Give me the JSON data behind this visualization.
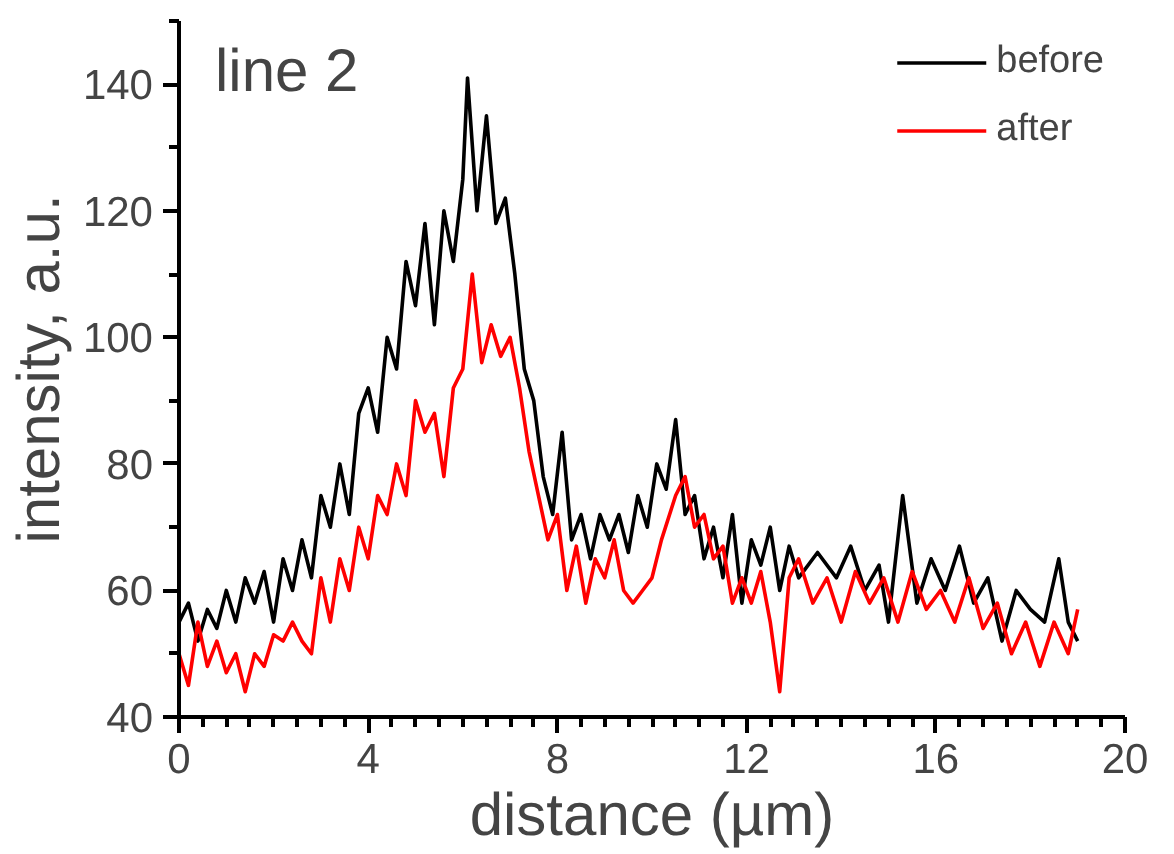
{
  "chart_data": {
    "type": "line",
    "title": "line 2",
    "xlabel": "distance (µm)",
    "ylabel": "intensity, a.u.",
    "xlim": [
      0,
      20
    ],
    "ylim": [
      40,
      150
    ],
    "xticks": [
      0,
      4,
      8,
      12,
      16,
      20
    ],
    "yticks": [
      40,
      60,
      80,
      100,
      120,
      140
    ],
    "grid": false,
    "legend": "top right",
    "marker": "none",
    "line_style": "solid",
    "series": [
      {
        "name": "before",
        "color": "#000000",
        "x": [
          0,
          0.2,
          0.4,
          0.6,
          0.8,
          1.0,
          1.2,
          1.4,
          1.6,
          1.8,
          2.0,
          2.2,
          2.4,
          2.6,
          2.8,
          3.0,
          3.2,
          3.4,
          3.6,
          3.8,
          4.0,
          4.2,
          4.4,
          4.6,
          4.8,
          5.0,
          5.2,
          5.4,
          5.6,
          5.8,
          6.0,
          6.1,
          6.3,
          6.5,
          6.7,
          6.9,
          7.1,
          7.3,
          7.5,
          7.7,
          7.9,
          8.1,
          8.3,
          8.5,
          8.7,
          8.9,
          9.1,
          9.3,
          9.5,
          9.7,
          9.9,
          10.1,
          10.3,
          10.5,
          10.7,
          10.9,
          11.1,
          11.3,
          11.5,
          11.7,
          11.9,
          12.1,
          12.3,
          12.5,
          12.7,
          12.9,
          13.1,
          13.5,
          13.9,
          14.2,
          14.5,
          14.8,
          15.0,
          15.3,
          15.6,
          15.9,
          16.2,
          16.5,
          16.8,
          17.1,
          17.4,
          17.7,
          18.0,
          18.3,
          18.6,
          18.8,
          19.0
        ],
        "values": [
          55,
          58,
          52,
          57,
          54,
          60,
          55,
          62,
          58,
          63,
          55,
          65,
          60,
          68,
          62,
          75,
          70,
          80,
          72,
          88,
          92,
          85,
          100,
          95,
          112,
          105,
          118,
          102,
          120,
          112,
          125,
          141,
          120,
          135,
          118,
          122,
          110,
          95,
          90,
          78,
          72,
          85,
          68,
          72,
          65,
          72,
          68,
          72,
          66,
          75,
          70,
          80,
          76,
          87,
          72,
          75,
          65,
          70,
          62,
          72,
          58,
          68,
          64,
          70,
          60,
          67,
          62,
          66,
          62,
          67,
          60,
          64,
          55,
          75,
          58,
          65,
          60,
          67,
          58,
          62,
          52,
          60,
          57,
          55,
          65,
          55,
          52
        ]
      },
      {
        "name": "after",
        "color": "#ff0000",
        "x": [
          0,
          0.2,
          0.4,
          0.6,
          0.8,
          1.0,
          1.2,
          1.4,
          1.6,
          1.8,
          2.0,
          2.2,
          2.4,
          2.6,
          2.8,
          3.0,
          3.2,
          3.4,
          3.6,
          3.8,
          4.0,
          4.2,
          4.4,
          4.6,
          4.8,
          5.0,
          5.2,
          5.4,
          5.6,
          5.8,
          6.0,
          6.2,
          6.4,
          6.6,
          6.8,
          7.0,
          7.2,
          7.4,
          7.6,
          7.8,
          8.0,
          8.2,
          8.4,
          8.6,
          8.8,
          9.0,
          9.2,
          9.4,
          9.6,
          9.8,
          10.0,
          10.2,
          10.5,
          10.7,
          10.9,
          11.1,
          11.3,
          11.5,
          11.7,
          11.9,
          12.1,
          12.3,
          12.5,
          12.7,
          12.9,
          13.1,
          13.4,
          13.7,
          14.0,
          14.3,
          14.6,
          14.9,
          15.2,
          15.5,
          15.8,
          16.1,
          16.4,
          16.7,
          17.0,
          17.3,
          17.6,
          17.9,
          18.2,
          18.5,
          18.8,
          19.0
        ],
        "values": [
          50,
          45,
          55,
          48,
          52,
          47,
          50,
          44,
          50,
          48,
          53,
          52,
          55,
          52,
          50,
          62,
          55,
          65,
          60,
          70,
          65,
          75,
          72,
          80,
          75,
          90,
          85,
          88,
          78,
          92,
          95,
          110,
          96,
          102,
          97,
          100,
          92,
          82,
          75,
          68,
          72,
          60,
          67,
          58,
          65,
          62,
          68,
          60,
          58,
          60,
          62,
          68,
          75,
          78,
          70,
          72,
          65,
          67,
          58,
          62,
          58,
          63,
          55,
          44,
          62,
          65,
          58,
          62,
          55,
          63,
          58,
          62,
          55,
          63,
          57,
          60,
          55,
          62,
          54,
          58,
          50,
          55,
          48,
          55,
          50,
          57
        ]
      }
    ]
  }
}
